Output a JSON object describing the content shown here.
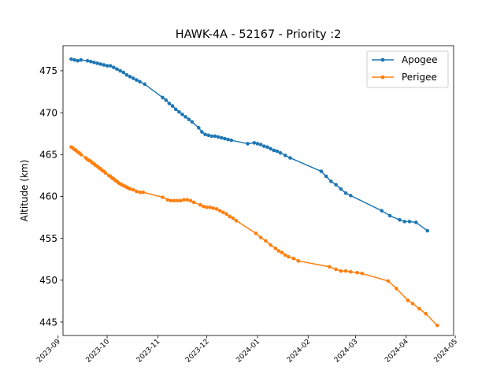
{
  "chart_data": {
    "type": "line",
    "title": "HAWK-4A - 52167 - Priority :2",
    "xlabel": "",
    "ylabel": "Altitude (km)",
    "x_axis": {
      "scale": "date",
      "range": [
        "2023-09-04",
        "2024-04-30"
      ],
      "ticks": [
        {
          "value": "2023-09-01",
          "label": "2023-09"
        },
        {
          "value": "2023-10-01",
          "label": "2023-10"
        },
        {
          "value": "2023-11-01",
          "label": "2023-11"
        },
        {
          "value": "2023-12-01",
          "label": "2023-12"
        },
        {
          "value": "2024-01-01",
          "label": "2024-01"
        },
        {
          "value": "2024-02-01",
          "label": "2024-02"
        },
        {
          "value": "2024-03-01",
          "label": "2024-03"
        },
        {
          "value": "2024-04-01",
          "label": "2024-04"
        },
        {
          "value": "2024-05-01",
          "label": "2024-05"
        }
      ]
    },
    "y_axis": {
      "range": [
        443.4,
        478.0
      ],
      "ticks": [
        445,
        450,
        455,
        460,
        465,
        470,
        475
      ]
    },
    "legend": {
      "position": "top-right"
    },
    "grid": false,
    "series": [
      {
        "name": "Apogee",
        "color": "#1f77b4",
        "points": [
          [
            "2023-09-09",
            476.4
          ],
          [
            "2023-09-11",
            476.3
          ],
          [
            "2023-09-13",
            476.2
          ],
          [
            "2023-09-15",
            476.3
          ],
          [
            "2023-09-19",
            476.2
          ],
          [
            "2023-09-21",
            476.1
          ],
          [
            "2023-09-23",
            476.0
          ],
          [
            "2023-09-25",
            475.9
          ],
          [
            "2023-09-27",
            475.8
          ],
          [
            "2023-09-29",
            475.7
          ],
          [
            "2023-10-01",
            475.6
          ],
          [
            "2023-10-03",
            475.6
          ],
          [
            "2023-10-05",
            475.4
          ],
          [
            "2023-10-07",
            475.2
          ],
          [
            "2023-10-09",
            475.0
          ],
          [
            "2023-10-11",
            474.8
          ],
          [
            "2023-10-13",
            474.5
          ],
          [
            "2023-10-15",
            474.3
          ],
          [
            "2023-10-17",
            474.1
          ],
          [
            "2023-10-19",
            473.9
          ],
          [
            "2023-10-21",
            473.7
          ],
          [
            "2023-10-24",
            473.4
          ],
          [
            "2023-11-04",
            471.8
          ],
          [
            "2023-11-06",
            471.5
          ],
          [
            "2023-11-08",
            471.1
          ],
          [
            "2023-11-10",
            470.8
          ],
          [
            "2023-11-12",
            470.4
          ],
          [
            "2023-11-14",
            470.1
          ],
          [
            "2023-11-16",
            469.8
          ],
          [
            "2023-11-18",
            469.5
          ],
          [
            "2023-11-20",
            469.2
          ],
          [
            "2023-11-22",
            468.9
          ],
          [
            "2023-11-26",
            468.2
          ],
          [
            "2023-11-28",
            467.7
          ],
          [
            "2023-11-30",
            467.4
          ],
          [
            "2023-12-02",
            467.3
          ],
          [
            "2023-12-04",
            467.2
          ],
          [
            "2023-12-06",
            467.2
          ],
          [
            "2023-12-08",
            467.1
          ],
          [
            "2023-12-10",
            467.0
          ],
          [
            "2023-12-12",
            466.9
          ],
          [
            "2023-12-14",
            466.8
          ],
          [
            "2023-12-16",
            466.7
          ],
          [
            "2023-12-26",
            466.3
          ],
          [
            "2023-12-30",
            466.4
          ],
          [
            "2024-01-01",
            466.3
          ],
          [
            "2024-01-03",
            466.2
          ],
          [
            "2024-01-05",
            466.0
          ],
          [
            "2024-01-07",
            465.9
          ],
          [
            "2024-01-09",
            465.7
          ],
          [
            "2024-01-11",
            465.5
          ],
          [
            "2024-01-13",
            465.4
          ],
          [
            "2024-01-15",
            465.2
          ],
          [
            "2024-01-18",
            464.9
          ],
          [
            "2024-01-21",
            464.6
          ],
          [
            "2024-02-09",
            463.0
          ],
          [
            "2024-02-12",
            462.4
          ],
          [
            "2024-02-15",
            461.8
          ],
          [
            "2024-02-18",
            461.4
          ],
          [
            "2024-02-21",
            460.9
          ],
          [
            "2024-02-24",
            460.4
          ],
          [
            "2024-02-27",
            460.1
          ],
          [
            "2024-03-17",
            458.3
          ],
          [
            "2024-03-22",
            457.7
          ],
          [
            "2024-03-28",
            457.2
          ],
          [
            "2024-03-31",
            457.0
          ],
          [
            "2024-04-03",
            457.0
          ],
          [
            "2024-04-07",
            456.9
          ],
          [
            "2024-04-14",
            455.9
          ]
        ]
      },
      {
        "name": "Perigee",
        "color": "#ff7f0e",
        "points": [
          [
            "2023-09-09",
            465.9
          ],
          [
            "2023-09-10",
            465.8
          ],
          [
            "2023-09-11",
            465.6
          ],
          [
            "2023-09-12",
            465.5
          ],
          [
            "2023-09-13",
            465.3
          ],
          [
            "2023-09-14",
            465.2
          ],
          [
            "2023-09-15",
            465.0
          ],
          [
            "2023-09-18",
            464.6
          ],
          [
            "2023-09-19",
            464.4
          ],
          [
            "2023-09-20",
            464.3
          ],
          [
            "2023-09-21",
            464.2
          ],
          [
            "2023-09-22",
            464.0
          ],
          [
            "2023-09-23",
            463.9
          ],
          [
            "2023-09-24",
            463.7
          ],
          [
            "2023-09-25",
            463.6
          ],
          [
            "2023-09-26",
            463.4
          ],
          [
            "2023-09-27",
            463.3
          ],
          [
            "2023-09-28",
            463.1
          ],
          [
            "2023-09-29",
            463.0
          ],
          [
            "2023-09-30",
            462.8
          ],
          [
            "2023-10-02",
            462.5
          ],
          [
            "2023-10-03",
            462.4
          ],
          [
            "2023-10-04",
            462.2
          ],
          [
            "2023-10-05",
            462.1
          ],
          [
            "2023-10-06",
            461.9
          ],
          [
            "2023-10-07",
            461.8
          ],
          [
            "2023-10-08",
            461.6
          ],
          [
            "2023-10-09",
            461.5
          ],
          [
            "2023-10-10",
            461.4
          ],
          [
            "2023-10-11",
            461.3
          ],
          [
            "2023-10-12",
            461.2
          ],
          [
            "2023-10-13",
            461.1
          ],
          [
            "2023-10-14",
            461.0
          ],
          [
            "2023-10-15",
            460.9
          ],
          [
            "2023-10-17",
            460.8
          ],
          [
            "2023-10-19",
            460.6
          ],
          [
            "2023-10-21",
            460.5
          ],
          [
            "2023-10-23",
            460.5
          ],
          [
            "2023-11-04",
            459.9
          ],
          [
            "2023-11-07",
            459.6
          ],
          [
            "2023-11-09",
            459.5
          ],
          [
            "2023-11-11",
            459.5
          ],
          [
            "2023-11-13",
            459.5
          ],
          [
            "2023-11-15",
            459.5
          ],
          [
            "2023-11-17",
            459.6
          ],
          [
            "2023-11-19",
            459.6
          ],
          [
            "2023-11-21",
            459.5
          ],
          [
            "2023-11-23",
            459.3
          ],
          [
            "2023-11-27",
            459.0
          ],
          [
            "2023-11-29",
            458.8
          ],
          [
            "2023-12-01",
            458.7
          ],
          [
            "2023-12-03",
            458.7
          ],
          [
            "2023-12-05",
            458.6
          ],
          [
            "2023-12-07",
            458.5
          ],
          [
            "2023-12-09",
            458.3
          ],
          [
            "2023-12-11",
            458.1
          ],
          [
            "2023-12-13",
            457.9
          ],
          [
            "2023-12-15",
            457.6
          ],
          [
            "2023-12-17",
            457.4
          ],
          [
            "2023-12-19",
            457.1
          ],
          [
            "2023-12-31",
            455.6
          ],
          [
            "2024-01-03",
            455.1
          ],
          [
            "2024-01-06",
            454.7
          ],
          [
            "2024-01-09",
            454.2
          ],
          [
            "2024-01-12",
            453.8
          ],
          [
            "2024-01-14",
            453.5
          ],
          [
            "2024-01-16",
            453.3
          ],
          [
            "2024-01-18",
            453.0
          ],
          [
            "2024-01-20",
            452.8
          ],
          [
            "2024-01-23",
            452.6
          ],
          [
            "2024-01-26",
            452.3
          ],
          [
            "2024-02-14",
            451.6
          ],
          [
            "2024-02-18",
            451.3
          ],
          [
            "2024-02-21",
            451.1
          ],
          [
            "2024-02-24",
            451.1
          ],
          [
            "2024-02-27",
            451.0
          ],
          [
            "2024-03-02",
            450.9
          ],
          [
            "2024-03-05",
            450.8
          ],
          [
            "2024-03-21",
            449.9
          ],
          [
            "2024-03-26",
            449.0
          ],
          [
            "2024-04-02",
            447.6
          ],
          [
            "2024-04-05",
            447.2
          ],
          [
            "2024-04-09",
            446.6
          ],
          [
            "2024-04-13",
            446.0
          ],
          [
            "2024-04-20",
            444.6
          ]
        ]
      }
    ]
  }
}
